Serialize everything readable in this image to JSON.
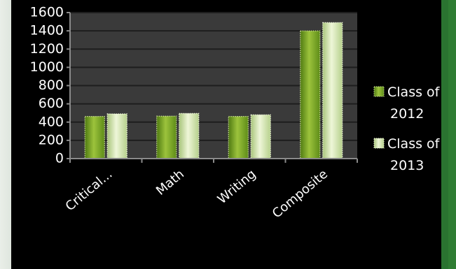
{
  "chart_data": {
    "type": "bar",
    "categories": [
      "Critical...",
      "Math",
      "Writing",
      "Composite"
    ],
    "series": [
      {
        "name": "Class of 2012",
        "values": [
          462,
          465,
          462,
          1400
        ],
        "color": "#7faa2a"
      },
      {
        "name": "Class of 2013",
        "values": [
          490,
          495,
          480,
          1490
        ],
        "color": "#d7e8b0"
      }
    ],
    "ylim": [
      0,
      1600
    ],
    "yticks": [
      0,
      200,
      400,
      600,
      800,
      1000,
      1200,
      1400,
      1600
    ],
    "grid": true,
    "legend": "right",
    "legend_labels": [
      {
        "line1": "Class of",
        "line2": "2012"
      },
      {
        "line1": "Class of",
        "line2": "2013"
      }
    ]
  },
  "colors": {
    "background": "#000000",
    "frame_green": "#2f7d33",
    "plot_bg": "#3a3a3a",
    "gridline": "#222222"
  }
}
